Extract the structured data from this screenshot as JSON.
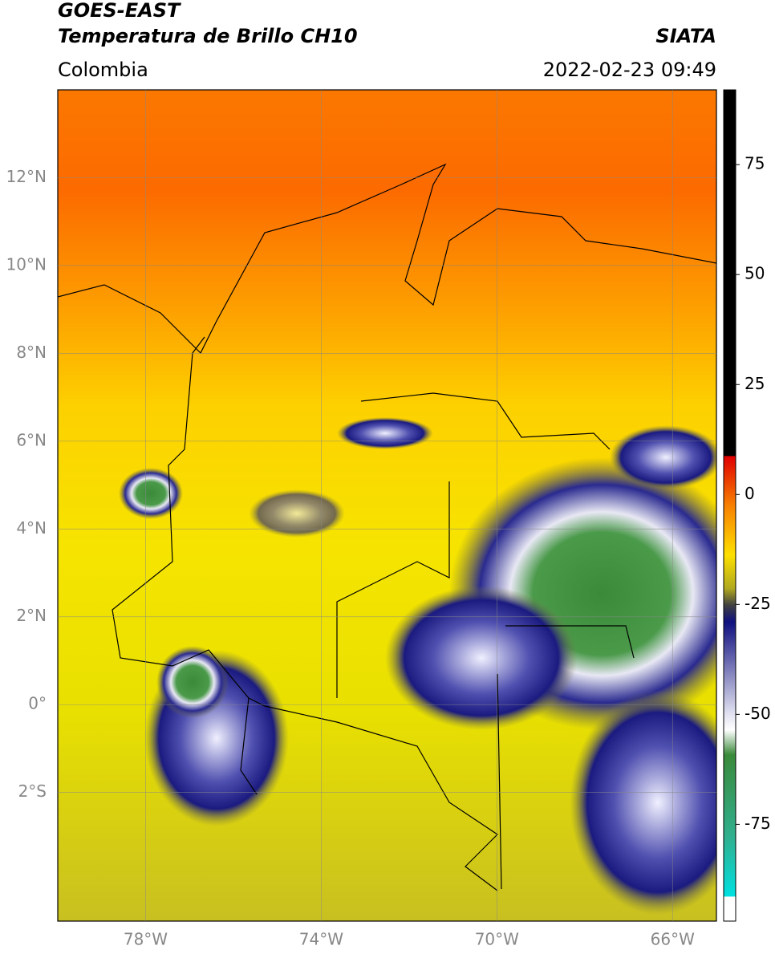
{
  "header": {
    "title_line1": "GOES-EAST",
    "title_line2": "Temperatura de Brillo CH10",
    "source": "SIATA",
    "region": "Colombia",
    "datetime": "2022-02-23 09:49"
  },
  "map": {
    "xlim": [
      -80,
      -65
    ],
    "ylim": [
      -4.93,
      14
    ],
    "lon_ticks": [
      {
        "value": -78,
        "label": "78°W"
      },
      {
        "value": -74,
        "label": "74°W"
      },
      {
        "value": -70,
        "label": "70°W"
      },
      {
        "value": -66,
        "label": "66°W"
      }
    ],
    "lat_ticks": [
      {
        "value": 12,
        "label": "12°N"
      },
      {
        "value": 10,
        "label": "10°N"
      },
      {
        "value": 8,
        "label": "8°N"
      },
      {
        "value": 6,
        "label": "6°N"
      },
      {
        "value": 4,
        "label": "4°N"
      },
      {
        "value": 2,
        "label": "2°N"
      },
      {
        "value": 0,
        "label": "0°"
      },
      {
        "value": -2,
        "label": "2°S"
      }
    ]
  },
  "colorbar": {
    "lim": [
      -97,
      92
    ],
    "ticks": [
      75,
      50,
      25,
      0,
      -25,
      -50,
      -75
    ]
  }
}
